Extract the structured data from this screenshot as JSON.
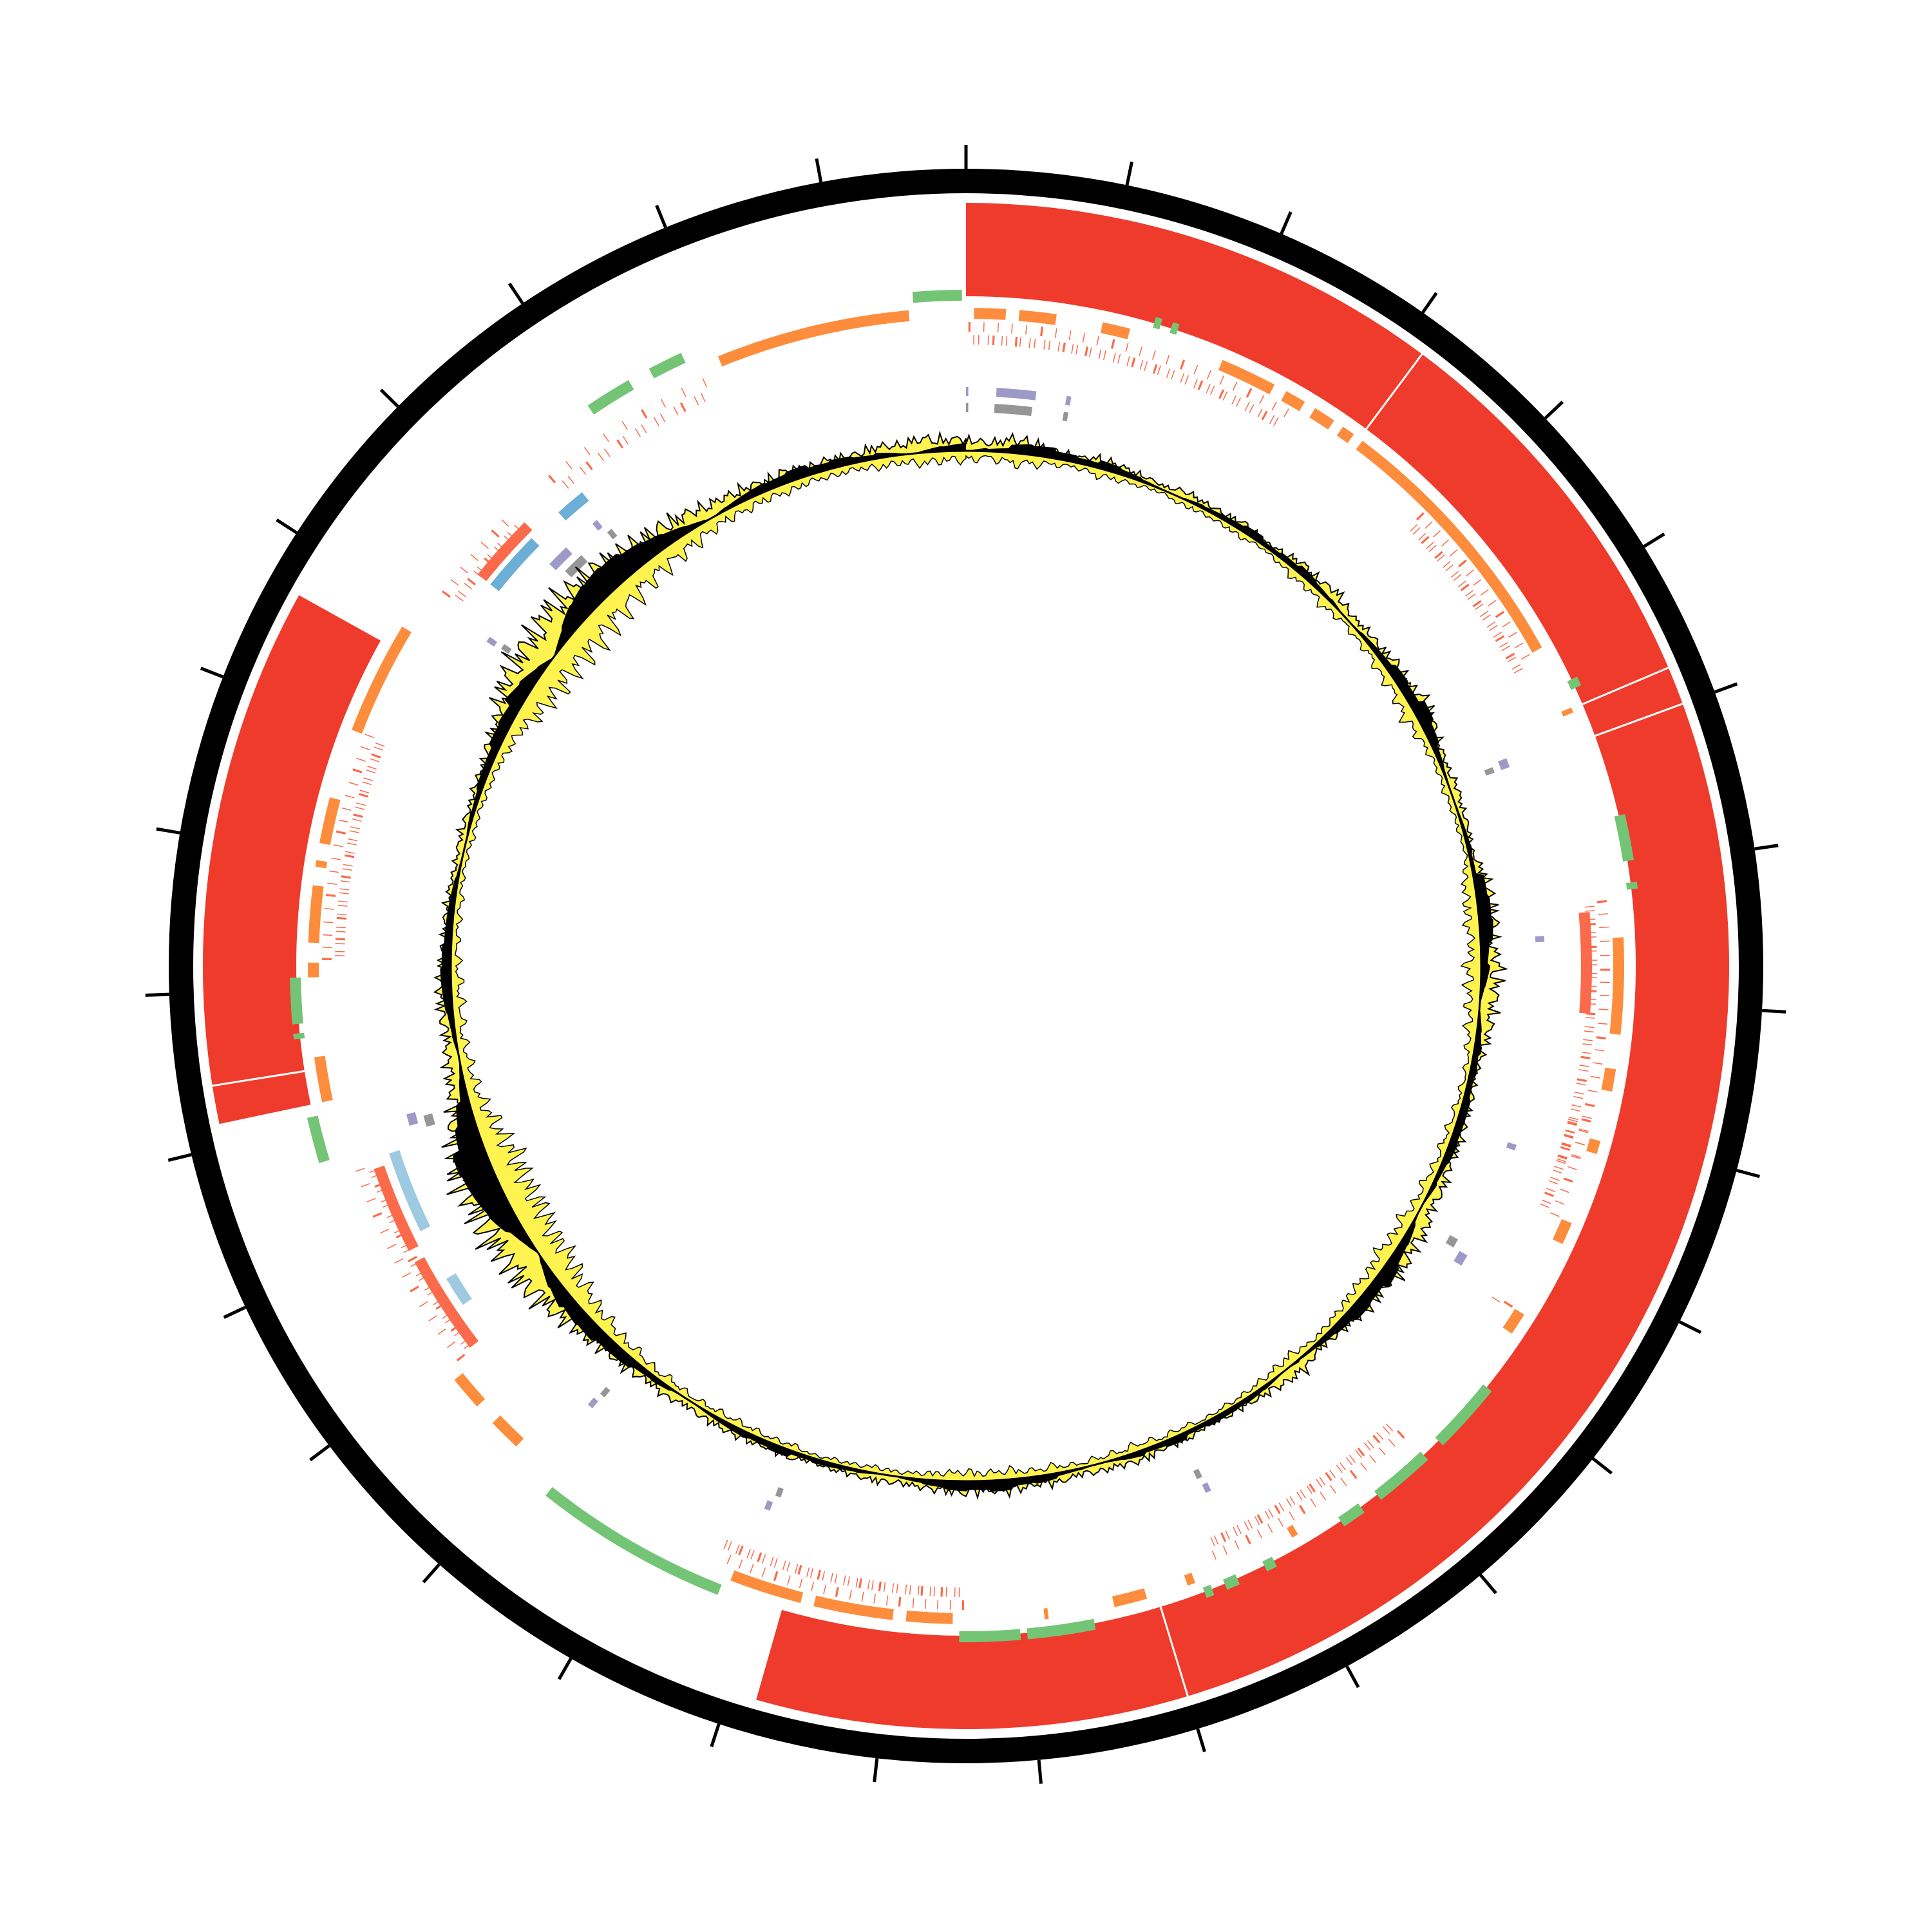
{
  "chart_data": {
    "type": "circular-genome",
    "title": "",
    "position_units": "axis ticks",
    "genome_length": 30.9,
    "tick_count": 31,
    "colors": {
      "axis": "#000000",
      "hits": "#EF3B2C",
      "green": "#74C476",
      "orange": "#FD8D3C",
      "red_features": "#FB6A4A",
      "blue": "#6BAED6",
      "light_blue": "#9ECAE1",
      "purple": "#9E9AC8",
      "gray": "#969696",
      "gc_fill": "#FFF44F",
      "gc_line": "#000000"
    },
    "tracks": {
      "hits": [
        [
          0,
          16.82
        ],
        [
          22.15,
          25.67
        ]
      ],
      "green": [
        [
          30.51,
          30.87
        ],
        [
          1.4,
          1.45
        ],
        [
          1.53,
          1.58
        ],
        [
          5.55,
          5.62
        ],
        [
          6.61,
          6.95
        ],
        [
          7.11,
          7.16
        ],
        [
          11.07,
          11.6
        ],
        [
          11.75,
          12.2
        ],
        [
          12.35,
          12.53
        ],
        [
          13.1,
          13.18
        ],
        [
          13.4,
          13.5
        ],
        [
          13.6,
          13.66
        ],
        [
          14.5,
          15.0
        ],
        [
          15.05,
          15.5
        ],
        [
          17.3,
          18.75
        ],
        [
          21.72,
          22.06
        ],
        [
          22.64,
          22.68
        ],
        [
          22.75,
          23.09
        ],
        [
          27.98,
          28.33
        ],
        [
          28.5,
          28.76
        ]
      ],
      "orange": [
        [
          0.06,
          0.3
        ],
        [
          0.4,
          0.68
        ],
        [
          1.03,
          1.24
        ],
        [
          1.97,
          2.4
        ],
        [
          2.5,
          2.66
        ],
        [
          2.75,
          2.92
        ],
        [
          3.0,
          3.1
        ],
        [
          3.18,
          5.24
        ],
        [
          5.74,
          5.78
        ],
        [
          7.51,
          8.24
        ],
        [
          8.5,
          8.67
        ],
        [
          9.05,
          9.15
        ],
        [
          9.7,
          9.87
        ],
        [
          10.47,
          10.64
        ],
        [
          12.85,
          12.9
        ],
        [
          13.7,
          13.76
        ],
        [
          14.08,
          14.33
        ],
        [
          14.83,
          14.86
        ],
        [
          15.55,
          15.9
        ],
        [
          16.0,
          16.6
        ],
        [
          16.7,
          17.25
        ],
        [
          19.15,
          19.4
        ],
        [
          19.57,
          19.83
        ],
        [
          22.15,
          22.49
        ],
        [
          23.09,
          23.2
        ],
        [
          23.35,
          23.78
        ],
        [
          23.92,
          23.97
        ],
        [
          24.1,
          24.45
        ],
        [
          24.98,
          25.84
        ],
        [
          29.0,
          30.47
        ]
      ],
      "red_feature_regions": [
        {
          "range": [
            0,
            2.6
          ],
          "count": 70
        },
        {
          "range": [
            3.86,
            5.32
          ],
          "count": 45
        },
        {
          "range": [
            7.2,
            9.3
          ],
          "count": 60
        },
        {
          "range": [
            8.9,
            9.7
          ],
          "count": 25
        },
        {
          "range": [
            10.45,
            10.5
          ],
          "count": 2
        },
        {
          "range": [
            11.75,
            13.5
          ],
          "count": 55
        },
        {
          "range": [
            15.45,
            17.4
          ],
          "count": 60
        },
        {
          "range": [
            19.9,
            21.6
          ],
          "count": 40
        },
        {
          "range": [
            23.2,
            25.0
          ],
          "count": 55
        },
        {
          "range": [
            26.2,
            27.0
          ],
          "count": 20
        },
        {
          "range": [
            27.4,
            28.85
          ],
          "count": 25
        }
      ],
      "red_feature_bars": [
        [
          19.95,
          20.75
        ],
        [
          20.85,
          21.55
        ],
        [
          26.5,
          27.05
        ],
        [
          7.3,
          8.1
        ]
      ],
      "blue": [
        [
          26.5,
          27.0
        ],
        [
          27.3,
          27.55
        ]
      ],
      "light_blue": [
        [
          20.95,
          21.63
        ],
        [
          20.26,
          20.51
        ]
      ],
      "purple": [
        [
          0,
          0.02
        ],
        [
          0.26,
          0.6
        ],
        [
          0.86,
          0.9
        ],
        [
          26.95,
          27.15
        ],
        [
          27.45,
          27.5
        ],
        [
          26.1,
          26.15
        ],
        [
          5.92,
          6.0
        ],
        [
          7.47,
          7.52
        ],
        [
          9.27,
          9.32
        ],
        [
          10.3,
          10.4
        ],
        [
          13.3,
          13.35
        ],
        [
          17.15,
          17.2
        ],
        [
          18.9,
          18.95
        ],
        [
          21.8,
          21.9
        ]
      ],
      "gray": [
        [
          0,
          0.02
        ],
        [
          0.25,
          0.58
        ],
        [
          0.86,
          0.9
        ],
        [
          27.0,
          27.2
        ],
        [
          27.5,
          27.55
        ],
        [
          26.12,
          26.17
        ],
        [
          5.95,
          6.0
        ],
        [
          10.22,
          10.3
        ],
        [
          13.32,
          13.37
        ],
        [
          17.1,
          17.15
        ],
        [
          18.88,
          18.93
        ],
        [
          21.75,
          21.85
        ]
      ]
    },
    "gc_track": {
      "x_range": [
        0,
        30.9
      ],
      "values": [
        0.3,
        -0.2,
        0.35,
        -0.3,
        0.2,
        -0.15,
        0.25,
        -0.2,
        0.15,
        -0.1,
        0.2,
        -0.15,
        0.15,
        -0.2,
        0.1,
        -0.15,
        0.25,
        -0.2,
        0.3,
        -0.15,
        0.2,
        -0.2,
        0.3,
        -0.25,
        0.4,
        -0.3,
        0.2,
        -0.15,
        0.2,
        -0.15,
        0.15,
        -0.1,
        0.3,
        -0.35,
        0.4,
        -0.3,
        0.45,
        -0.4,
        0.35,
        -0.3,
        0.2,
        -0.15,
        0.2,
        -0.2,
        0.25,
        -0.2,
        0.3,
        -0.25,
        0.4,
        -0.35,
        0.45,
        -0.3,
        0.35,
        -0.25,
        0.2,
        -0.15,
        0.3,
        -0.25,
        0.2,
        -0.15,
        0.15,
        -0.1,
        0.2,
        -0.15,
        0.25,
        -0.2,
        0.2,
        -0.15,
        0.25,
        -0.2,
        0.3,
        -0.25,
        0.3,
        -0.25,
        0.2,
        -0.15,
        0.2,
        -0.15,
        0.15,
        -0.1,
        0.2,
        -0.15,
        0.2,
        -0.2,
        0.2,
        -0.15,
        0.25,
        -0.2,
        0.3,
        -0.3,
        0.4,
        -0.45,
        0.6,
        -0.7,
        0.8,
        -0.75,
        0.9,
        -0.85,
        0.85,
        -0.9,
        0.7,
        -0.6,
        0.4,
        -0.35,
        0.3,
        -0.25,
        0.3,
        -0.3,
        0.25,
        -0.2,
        0.2,
        -0.2,
        0.15,
        -0.15,
        0.2,
        -0.15,
        0.2,
        -0.2,
        0.3,
        -0.35,
        0.6,
        -0.7,
        0.8,
        -0.75,
        0.85,
        -0.8,
        0.75,
        -0.7,
        0.6,
        -0.55,
        0.5,
        -0.45,
        0.35,
        -0.3,
        0.3,
        -0.25,
        0.3,
        -0.2,
        0.25,
        -0.2,
        0.3,
        -0.25,
        0.35,
        -0.3
      ]
    }
  }
}
